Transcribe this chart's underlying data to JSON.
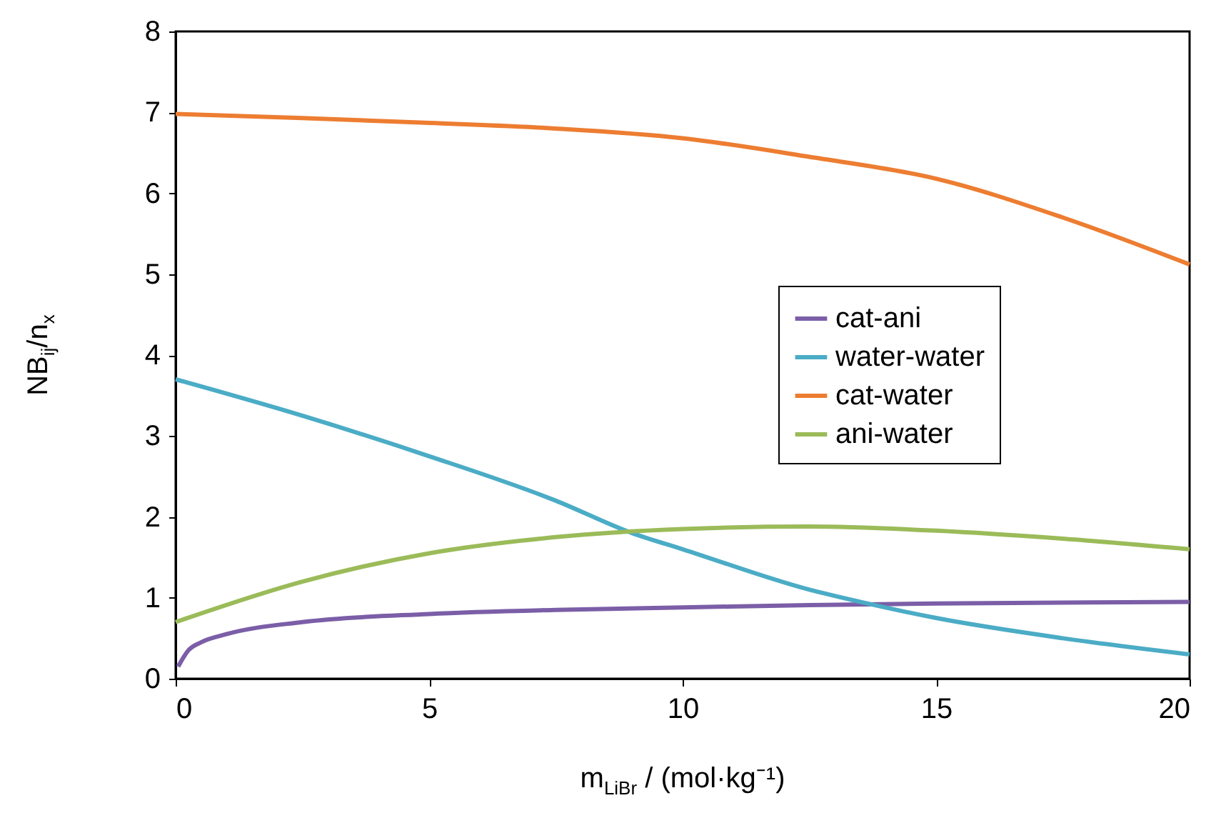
{
  "chart_data": {
    "type": "line",
    "xlabel": "m$_{LiBr}$ / (mol·kg⁻¹)",
    "ylabel": "NB$_{ij}$/n$_{x}$",
    "xlim": [
      0,
      20
    ],
    "xticks": [
      0,
      5,
      10,
      15,
      20
    ],
    "ylim": [
      0,
      8
    ],
    "yticks": [
      0,
      1,
      2,
      3,
      4,
      5,
      6,
      7,
      8
    ],
    "grid": false,
    "legend": "right",
    "line_style": "solid",
    "marker": "none",
    "series": [
      {
        "name": "cat-ani",
        "color": "#7b5ea7",
        "x": [
          0.05,
          0.25,
          0.5,
          1,
          2.5,
          5,
          7.5,
          10,
          12.5,
          15,
          17.5,
          20
        ],
        "values": [
          0.15,
          0.35,
          0.45,
          0.55,
          0.7,
          0.8,
          0.85,
          0.88,
          0.91,
          0.93,
          0.94,
          0.95
        ]
      },
      {
        "name": "water-water",
        "color": "#4bacc6",
        "x": [
          0,
          2.5,
          5,
          7.5,
          9,
          10,
          12.5,
          13.5,
          15,
          17.5,
          20
        ],
        "values": [
          3.7,
          3.25,
          2.75,
          2.2,
          1.8,
          1.6,
          1.1,
          0.95,
          0.75,
          0.5,
          0.3
        ]
      },
      {
        "name": "cat-water",
        "color": "#ed7d31",
        "x": [
          0,
          2.5,
          5,
          7.5,
          10,
          12.5,
          15,
          17.5,
          20
        ],
        "values": [
          6.98,
          6.93,
          6.87,
          6.8,
          6.68,
          6.45,
          6.18,
          5.7,
          5.12
        ]
      },
      {
        "name": "ani-water",
        "color": "#9bbb59",
        "x": [
          0,
          2.5,
          5,
          7.5,
          10,
          12.5,
          15,
          17.5,
          20
        ],
        "values": [
          0.7,
          1.2,
          1.55,
          1.75,
          1.85,
          1.88,
          1.83,
          1.73,
          1.6
        ]
      }
    ]
  }
}
